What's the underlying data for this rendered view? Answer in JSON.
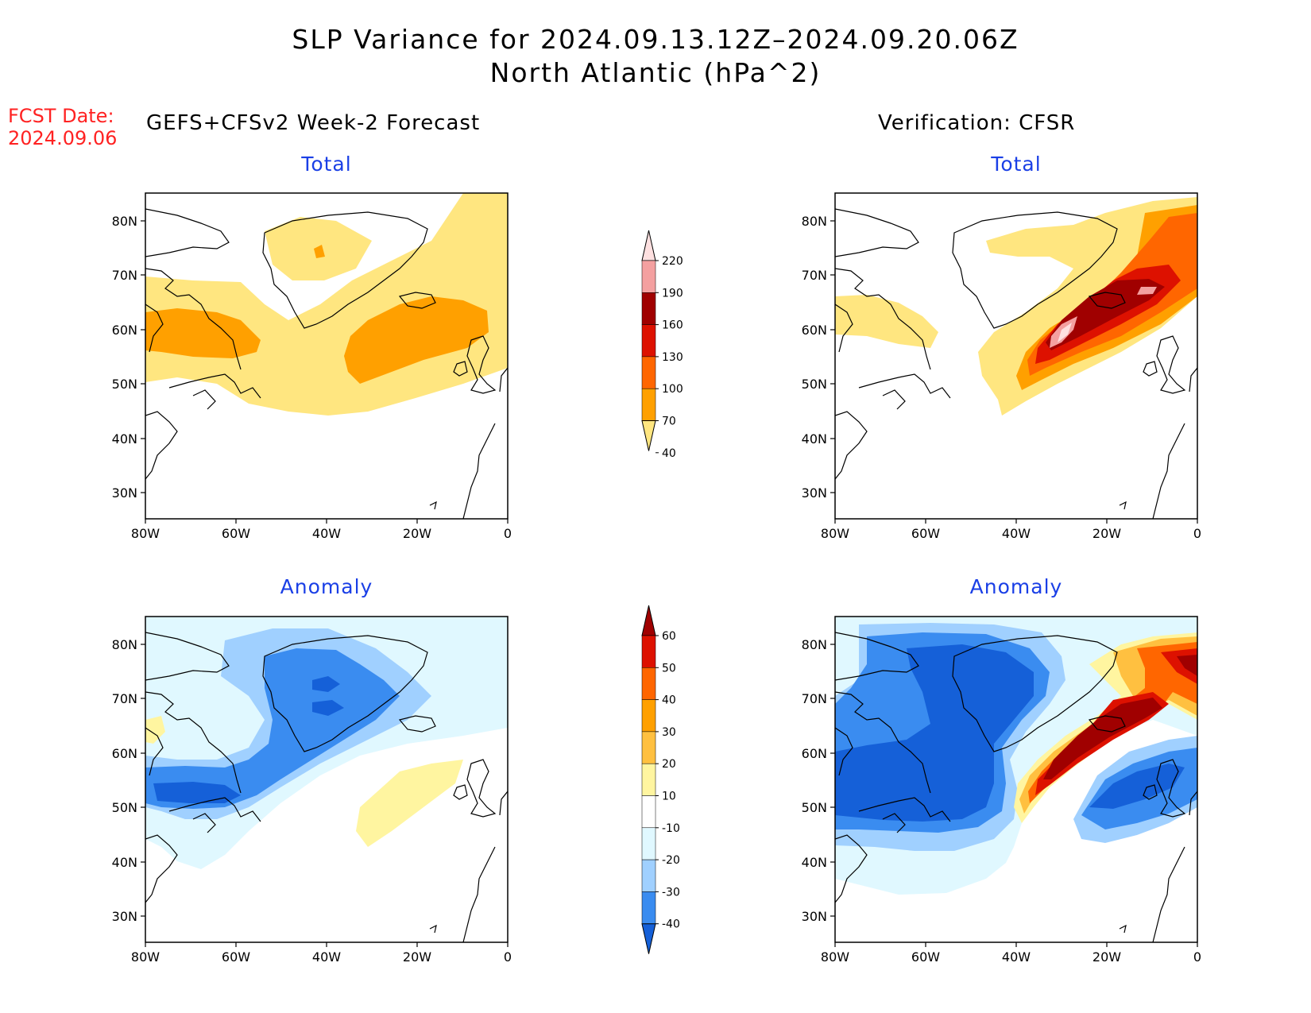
{
  "title": {
    "line1": "SLP Variance for 2024.09.13.12Z–2024.09.20.06Z",
    "line2": "North Atlantic (hPa^2)"
  },
  "fcst": {
    "label": "FCST Date:",
    "date": "2024.09.06"
  },
  "columns": {
    "left": "GEFS+CFSv2 Week-2 Forecast",
    "right": "Verification: CFSR"
  },
  "panels": {
    "top_left": "Total",
    "top_right": "Total",
    "bottom_left": "Anomaly",
    "bottom_right": "Anomaly"
  },
  "axes": {
    "lat_labels": [
      "80N",
      "70N",
      "60N",
      "50N",
      "40N",
      "30N"
    ],
    "lon_labels": [
      "80W",
      "60W",
      "40W",
      "20W",
      "0"
    ]
  },
  "colorbar_total": {
    "labels": [
      "220",
      "190",
      "160",
      "130",
      "100",
      "70",
      "40"
    ],
    "colors": [
      "#fee0e0",
      "#f4a0a0",
      "#a00000",
      "#dd1100",
      "#ff6600",
      "#ffa000",
      "#ffe680"
    ]
  },
  "colorbar_anomaly": {
    "labels": [
      "60",
      "50",
      "40",
      "30",
      "20",
      "10",
      "-10",
      "-20",
      "-30",
      "-40"
    ],
    "colors": [
      "#a00000",
      "#dd1100",
      "#ff6600",
      "#ffa000",
      "#ffc040",
      "#fff5a0",
      "#ffffff",
      "#e0f8ff",
      "#a0d0ff",
      "#3a8cf0",
      "#1560d8"
    ]
  }
}
